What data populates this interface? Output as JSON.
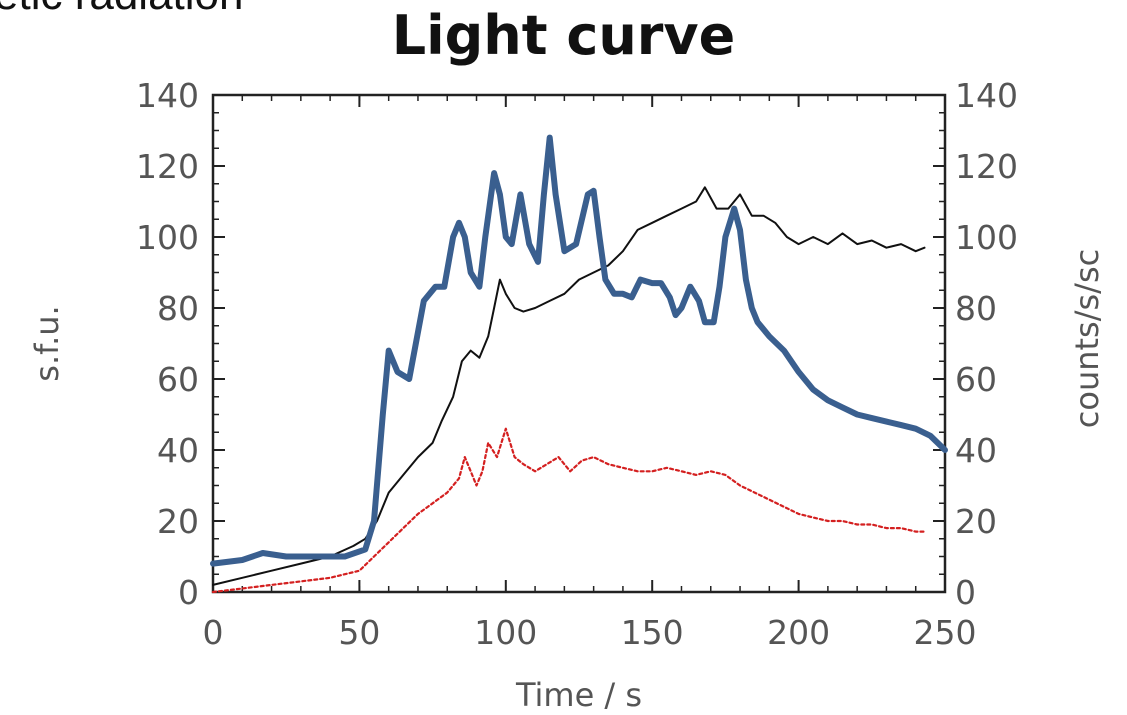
{
  "slide_fragment": "etic radiation",
  "chart_data": {
    "type": "line",
    "title": "Light curve",
    "xlabel": "Time  /  s",
    "ylabel_left": "s.f.u.",
    "ylabel_right": "counts/s/sc",
    "xlim": [
      0,
      250
    ],
    "ylim_left": [
      0,
      140
    ],
    "ylim_right": [
      0,
      140
    ],
    "xticks": [
      "0",
      "50",
      "100",
      "150",
      "200",
      "250"
    ],
    "yticks_left": [
      "0",
      "20",
      "40",
      "60",
      "80",
      "100",
      "120",
      "140"
    ],
    "yticks_right": [
      "0",
      "20",
      "40",
      "60",
      "80",
      "100",
      "120",
      "140"
    ],
    "grid": false,
    "series": [
      {
        "color": "#3a5f8f",
        "style": "thick",
        "x": [
          0,
          10,
          17,
          25,
          35,
          45,
          52,
          55,
          58,
          60,
          63,
          67,
          72,
          76,
          79,
          82,
          84,
          86,
          88,
          91,
          93,
          96,
          98,
          100,
          102,
          105,
          108,
          111,
          113,
          115,
          117,
          120,
          124,
          128,
          130,
          132,
          134,
          137,
          140,
          143,
          146,
          150,
          153,
          156,
          158,
          160,
          163,
          166,
          168,
          171,
          173,
          175,
          178,
          180,
          182,
          184,
          186,
          188,
          190,
          195,
          200,
          205,
          210,
          215,
          220,
          225,
          230,
          235,
          240,
          245,
          250
        ],
        "y": [
          8,
          9,
          11,
          10,
          10,
          10,
          12,
          20,
          50,
          68,
          62,
          60,
          82,
          86,
          86,
          100,
          104,
          100,
          90,
          86,
          100,
          118,
          112,
          100,
          98,
          112,
          98,
          93,
          112,
          128,
          112,
          96,
          98,
          112,
          113,
          100,
          88,
          84,
          84,
          83,
          88,
          87,
          87,
          83,
          78,
          80,
          86,
          82,
          76,
          76,
          86,
          100,
          108,
          102,
          88,
          80,
          76,
          74,
          72,
          68,
          62,
          57,
          54,
          52,
          50,
          49,
          48,
          47,
          46,
          44,
          40
        ]
      },
      {
        "color": "#111111",
        "style": "thin",
        "x": [
          0,
          10,
          20,
          30,
          40,
          48,
          52,
          56,
          60,
          65,
          70,
          75,
          78,
          82,
          85,
          88,
          91,
          94,
          96,
          98,
          100,
          103,
          106,
          110,
          115,
          120,
          125,
          130,
          135,
          140,
          145,
          150,
          155,
          160,
          165,
          168,
          172,
          176,
          180,
          184,
          188,
          192,
          196,
          200,
          205,
          210,
          215,
          220,
          225,
          230,
          235,
          240,
          243
        ],
        "y": [
          2,
          4,
          6,
          8,
          10,
          13,
          15,
          20,
          28,
          33,
          38,
          42,
          48,
          55,
          65,
          68,
          66,
          72,
          80,
          88,
          84,
          80,
          79,
          80,
          82,
          84,
          88,
          90,
          92,
          96,
          102,
          104,
          106,
          108,
          110,
          114,
          108,
          108,
          112,
          106,
          106,
          104,
          100,
          98,
          100,
          98,
          101,
          98,
          99,
          97,
          98,
          96,
          97
        ]
      },
      {
        "color": "#d42020",
        "style": "dotted",
        "x": [
          0,
          10,
          20,
          30,
          40,
          50,
          55,
          60,
          65,
          70,
          75,
          80,
          84,
          86,
          88,
          90,
          92,
          94,
          97,
          100,
          103,
          106,
          110,
          114,
          118,
          122,
          126,
          130,
          135,
          140,
          145,
          150,
          155,
          160,
          165,
          170,
          175,
          180,
          185,
          190,
          195,
          200,
          205,
          210,
          215,
          220,
          225,
          230,
          235,
          240,
          243
        ],
        "y": [
          0,
          1,
          2,
          3,
          4,
          6,
          10,
          14,
          18,
          22,
          25,
          28,
          32,
          38,
          34,
          30,
          34,
          42,
          38,
          46,
          38,
          36,
          34,
          36,
          38,
          34,
          37,
          38,
          36,
          35,
          34,
          34,
          35,
          34,
          33,
          34,
          33,
          30,
          28,
          26,
          24,
          22,
          21,
          20,
          20,
          19,
          19,
          18,
          18,
          17,
          17
        ]
      }
    ]
  }
}
